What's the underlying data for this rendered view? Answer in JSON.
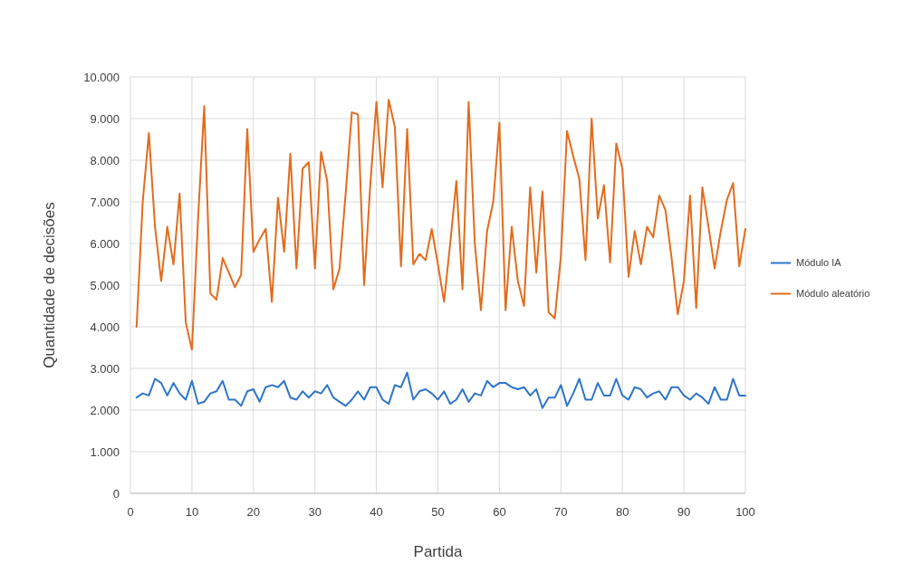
{
  "chart_data": {
    "type": "line",
    "xlabel": "Partida",
    "ylabel": "Quantidade de decisões",
    "x": [
      1,
      2,
      3,
      4,
      5,
      6,
      7,
      8,
      9,
      10,
      11,
      12,
      13,
      14,
      15,
      16,
      17,
      18,
      19,
      20,
      21,
      22,
      23,
      24,
      25,
      26,
      27,
      28,
      29,
      30,
      31,
      32,
      33,
      34,
      35,
      36,
      37,
      38,
      39,
      40,
      41,
      42,
      43,
      44,
      45,
      46,
      47,
      48,
      49,
      50,
      51,
      52,
      53,
      54,
      55,
      56,
      57,
      58,
      59,
      60,
      61,
      62,
      63,
      64,
      65,
      66,
      67,
      68,
      69,
      70,
      71,
      72,
      73,
      74,
      75,
      76,
      77,
      78,
      79,
      80,
      81,
      82,
      83,
      84,
      85,
      86,
      87,
      88,
      89,
      90,
      91,
      92,
      93,
      94,
      95,
      96,
      97,
      98,
      99,
      100
    ],
    "series": [
      {
        "name": "Módulo IA",
        "color": "#2e75c8",
        "values": [
          2300,
          2400,
          2350,
          2750,
          2650,
          2350,
          2650,
          2400,
          2250,
          2700,
          2150,
          2200,
          2400,
          2450,
          2700,
          2250,
          2250,
          2100,
          2450,
          2500,
          2200,
          2550,
          2600,
          2550,
          2700,
          2300,
          2250,
          2450,
          2300,
          2450,
          2400,
          2600,
          2300,
          2200,
          2100,
          2250,
          2450,
          2250,
          2550,
          2550,
          2250,
          2150,
          2600,
          2550,
          2900,
          2250,
          2450,
          2500,
          2400,
          2250,
          2450,
          2150,
          2250,
          2500,
          2200,
          2400,
          2350,
          2700,
          2550,
          2650,
          2650,
          2550,
          2500,
          2550,
          2350,
          2500,
          2050,
          2300,
          2300,
          2600,
          2100,
          2400,
          2750,
          2250,
          2250,
          2650,
          2350,
          2350,
          2750,
          2350,
          2250,
          2550,
          2500,
          2300,
          2400,
          2450,
          2250,
          2550,
          2550,
          2350,
          2250,
          2400,
          2300,
          2150,
          2550,
          2250,
          2250,
          2750,
          2350,
          2350
        ]
      },
      {
        "name": "Módulo aleatório",
        "color": "#e36c1d",
        "values": [
          4000,
          7000,
          8650,
          6400,
          5100,
          6400,
          5500,
          7200,
          4100,
          3450,
          6600,
          9300,
          4800,
          4650,
          5650,
          5300,
          4950,
          5250,
          8750,
          5800,
          6100,
          6350,
          4600,
          7100,
          5800,
          8150,
          5400,
          7800,
          7950,
          5400,
          8200,
          7500,
          4900,
          5400,
          7200,
          9150,
          9100,
          5000,
          7400,
          9400,
          7350,
          9450,
          8800,
          5450,
          8750,
          5500,
          5750,
          5600,
          6350,
          5500,
          4600,
          6000,
          7500,
          4900,
          9400,
          6000,
          4400,
          6300,
          7000,
          8900,
          4400,
          6400,
          5100,
          4500,
          7350,
          5300,
          7250,
          4350,
          4200,
          5700,
          8700,
          8100,
          7550,
          5600,
          9000,
          6600,
          7400,
          5550,
          8400,
          7800,
          5200,
          6300,
          5500,
          6400,
          6150,
          7150,
          6800,
          5650,
          4300,
          5100,
          7150,
          4450,
          7350,
          6400,
          5400,
          6300,
          7050,
          7450,
          5450,
          6350
        ]
      }
    ],
    "xlim": [
      0,
      100
    ],
    "xticks": [
      0,
      10,
      20,
      30,
      40,
      50,
      60,
      70,
      80,
      90,
      100
    ],
    "ylim": [
      0,
      10000
    ],
    "yticks": [
      0,
      {
        "value": 1000,
        "label": "1.000"
      },
      {
        "value": 2000,
        "label": "2.000"
      },
      {
        "value": 3000,
        "label": "3.000"
      },
      {
        "value": 4000,
        "label": "4.000"
      },
      {
        "value": 5000,
        "label": "5.000"
      },
      {
        "value": 6000,
        "label": "6.000"
      },
      {
        "value": 7000,
        "label": "7.000"
      },
      {
        "value": 8000,
        "label": "8.000"
      },
      {
        "value": 9000,
        "label": "9.000"
      },
      {
        "value": 10000,
        "label": "10.000"
      }
    ],
    "grid": true,
    "legend": "right",
    "marker": "none",
    "line_style": "solid"
  }
}
